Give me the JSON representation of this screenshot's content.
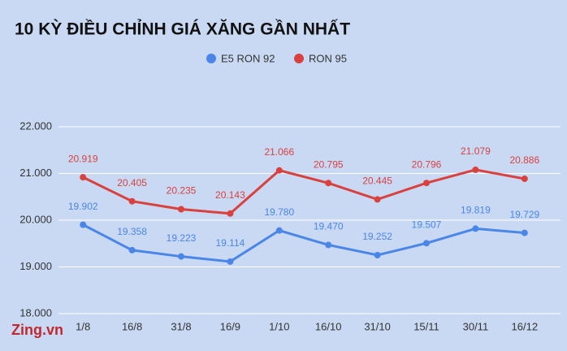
{
  "chart_data": {
    "type": "line",
    "title": "10 KỲ ĐIỀU CHỈNH GIÁ XĂNG GẦN NHẤT",
    "watermark": "Zing.vn",
    "categories": [
      "1/8",
      "16/8",
      "31/8",
      "16/9",
      "1/10",
      "16/10",
      "31/10",
      "15/11",
      "30/11",
      "16/12"
    ],
    "series": [
      {
        "name": "E5 RON 92",
        "color": "#4a86e8",
        "values": [
          19902,
          19358,
          19223,
          19114,
          19780,
          19470,
          19252,
          19507,
          19819,
          19729
        ],
        "value_labels": [
          "19.902",
          "19.358",
          "19.223",
          "19.114",
          "19.780",
          "19.470",
          "19.252",
          "19.507",
          "19.819",
          "19.729"
        ]
      },
      {
        "name": "RON 95",
        "color": "#d9413f",
        "values": [
          20919,
          20405,
          20235,
          20143,
          21066,
          20795,
          20445,
          20796,
          21079,
          20886
        ],
        "value_labels": [
          "20.919",
          "20.405",
          "20.235",
          "20.143",
          "21.066",
          "20.795",
          "20.445",
          "20.796",
          "21.079",
          "20.886"
        ]
      }
    ],
    "ylim": [
      18000,
      22000
    ],
    "yticks": [
      {
        "value": 18000,
        "label": "18.000"
      },
      {
        "value": 19000,
        "label": "19.000"
      },
      {
        "value": 20000,
        "label": "20.000"
      },
      {
        "value": 21000,
        "label": "21.000"
      },
      {
        "value": 22000,
        "label": "22.000"
      }
    ],
    "grid": true,
    "legend": "top"
  }
}
